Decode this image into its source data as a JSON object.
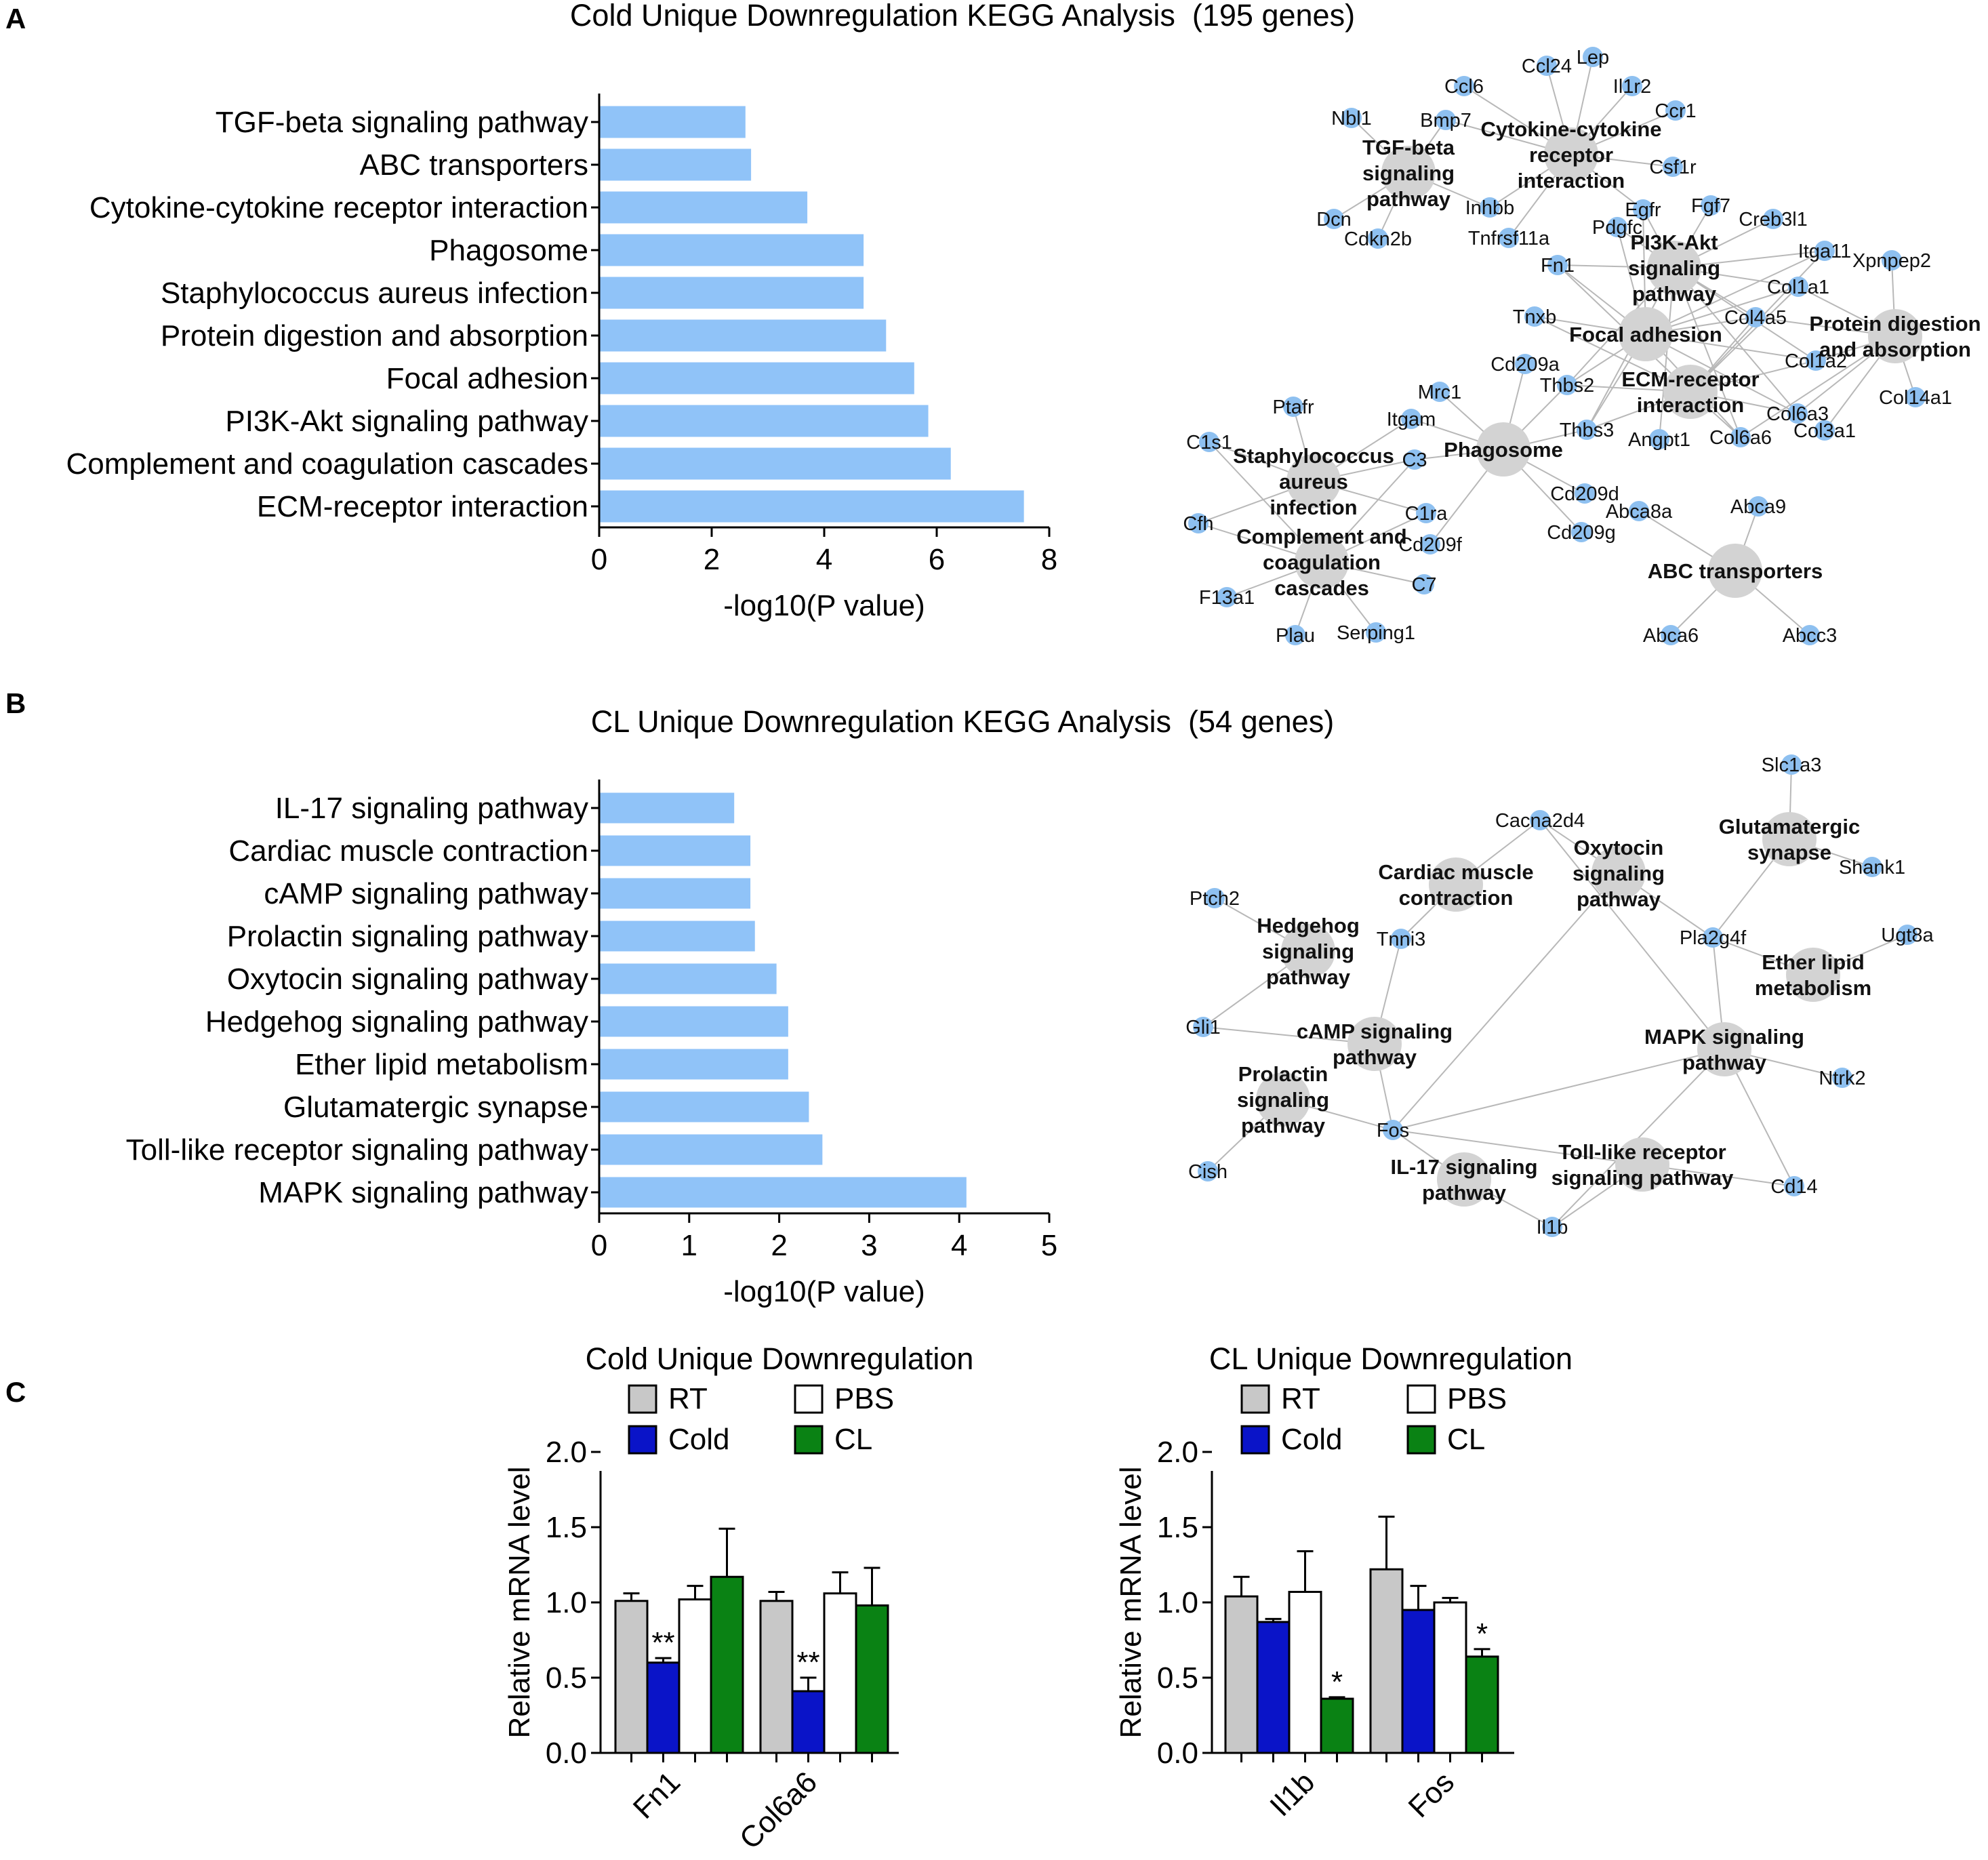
{
  "panel_labels": [
    "A",
    "B",
    "C"
  ],
  "chart_data": [
    {
      "type": "bar",
      "orientation": "horizontal",
      "title": "Cold Unique Downregulation KEGG Analysis  (195 genes)",
      "categories": [
        "TGF-beta signaling pathway",
        "ABC transporters",
        "Cytokine-cytokine receptor interaction",
        "Phagosome",
        "Staphylococcus aureus infection",
        "Protein digestion and absorption",
        "Focal adhesion",
        "PI3K-Akt signaling pathway",
        "Complement and coagulation cascades",
        "ECM-receptor interaction"
      ],
      "values": [
        2.6,
        2.7,
        3.7,
        4.7,
        4.7,
        5.1,
        5.6,
        5.85,
        6.25,
        7.55
      ],
      "xlabel": "-log10(P value)",
      "xlim": [
        0,
        8
      ],
      "xticks": [
        "0",
        "2",
        "4",
        "6",
        "8"
      ],
      "color": "#90c3f8"
    },
    {
      "type": "bar",
      "orientation": "horizontal",
      "title": "CL Unique Downregulation KEGG Analysis  (54 genes)",
      "categories": [
        "IL-17 signaling pathway",
        "Cardiac muscle contraction",
        "cAMP signaling pathway",
        "Prolactin signaling pathway",
        "Oxytocin signaling pathway",
        "Hedgehog signaling pathway",
        "Ether lipid metabolism",
        "Glutamatergic synapse",
        "Toll-like receptor signaling pathway",
        "MAPK signaling pathway"
      ],
      "values": [
        1.5,
        1.68,
        1.68,
        1.73,
        1.97,
        2.1,
        2.1,
        2.33,
        2.48,
        4.08
      ],
      "xlabel": "-log10(P value)",
      "xlim": [
        0,
        5
      ],
      "xticks": [
        "0",
        "1",
        "2",
        "3",
        "4",
        "5"
      ],
      "color": "#90c3f8"
    },
    {
      "type": "bar",
      "title": "Cold Unique Downregulation",
      "categories": [
        "Fn1",
        "Col6a6"
      ],
      "series": [
        {
          "name": "RT",
          "color": "#c8c8c8",
          "values": [
            1.01,
            1.01
          ],
          "errors": [
            0.05,
            0.06
          ],
          "marks": [
            "",
            ""
          ]
        },
        {
          "name": "Cold",
          "color": "#0a14c8",
          "values": [
            0.6,
            0.41
          ],
          "errors": [
            0.03,
            0.09
          ],
          "marks": [
            "**",
            "**"
          ]
        },
        {
          "name": "PBS",
          "color": "#ffffff",
          "values": [
            1.02,
            1.06
          ],
          "errors": [
            0.09,
            0.14
          ],
          "marks": [
            "",
            ""
          ]
        },
        {
          "name": "CL",
          "color": "#0a8214",
          "values": [
            1.17,
            0.98
          ],
          "errors": [
            0.32,
            0.25
          ],
          "marks": [
            "",
            ""
          ]
        }
      ],
      "ylabel": "Relative mRNA level",
      "ylim": [
        0,
        2.0
      ],
      "yticks": [
        "0.0",
        "0.5",
        "1.0",
        "1.5",
        "2.0"
      ]
    },
    {
      "type": "bar",
      "title": "CL Unique Downregulation",
      "categories": [
        "Il1b",
        "Fos"
      ],
      "series": [
        {
          "name": "RT",
          "color": "#c8c8c8",
          "values": [
            1.04,
            1.22
          ],
          "errors": [
            0.13,
            0.35
          ],
          "marks": [
            "",
            ""
          ]
        },
        {
          "name": "Cold",
          "color": "#0a14c8",
          "values": [
            0.87,
            0.95
          ],
          "errors": [
            0.02,
            0.16
          ],
          "marks": [
            "",
            ""
          ]
        },
        {
          "name": "PBS",
          "color": "#ffffff",
          "values": [
            1.07,
            1.0
          ],
          "errors": [
            0.27,
            0.03
          ],
          "marks": [
            "",
            ""
          ]
        },
        {
          "name": "CL",
          "color": "#0a8214",
          "values": [
            0.36,
            0.64
          ],
          "errors": [
            0.01,
            0.05
          ],
          "marks": [
            "*",
            "*"
          ]
        }
      ],
      "ylabel": "Relative mRNA level",
      "ylim": [
        0,
        2.0
      ],
      "yticks": [
        "0.0",
        "0.5",
        "1.0",
        "1.5",
        "2.0"
      ]
    }
  ],
  "networks": [
    {
      "pathways": [
        "TGF-beta signaling pathway",
        "Cytokine-cytokine receptor interaction",
        "PI3K-Akt signaling pathway",
        "Focal adhesion",
        "Protein digestion and absorption",
        "ECM-receptor interaction",
        "Phagosome",
        "Staphylococcus aureus infection",
        "Complement and coagulation cascades",
        "ABC transporters"
      ],
      "genes": [
        "Nbl1",
        "Bmp7",
        "Dcn",
        "Cdkn2b",
        "Inhbb",
        "Ccl6",
        "Ccl24",
        "Lep",
        "Il1r2",
        "Ccr1",
        "Csf1r",
        "Tnfrsf11a",
        "Egfr",
        "Fgf7",
        "Creb3l1",
        "Pdgfc",
        "Itga11",
        "Xpnpep2",
        "Fn1",
        "Col1a1",
        "Tnxb",
        "Col4a5",
        "Col1a2",
        "Thbs2",
        "Col6a3",
        "Col14a1",
        "Thbs3",
        "Angpt1",
        "Col6a6",
        "Col3a1",
        "Cd209a",
        "Mrc1",
        "Ptafr",
        "Itgam",
        "C3",
        "C1s1",
        "Cd209d",
        "C1ra",
        "Cd209g",
        "Cd209f",
        "Cfh",
        "C7",
        "F13a1",
        "Plau",
        "Serping1",
        "Abca8a",
        "Abca9",
        "Abca6",
        "Abcc3"
      ]
    },
    {
      "pathways": [
        "Cardiac muscle contraction",
        "Oxytocin signaling pathway",
        "Glutamatergic synapse",
        "Hedgehog signaling pathway",
        "Ether lipid metabolism",
        "cAMP signaling pathway",
        "MAPK signaling pathway",
        "Prolactin signaling pathway",
        "Toll-like receptor signaling pathway",
        "IL-17 signaling pathway"
      ],
      "genes": [
        "Slc1a3",
        "Cacna2d4",
        "Shank1",
        "Ptch2",
        "Tnni3",
        "Pla2g4f",
        "Ugt8a",
        "Gli1",
        "Ntrk2",
        "Fos",
        "Cish",
        "Cd14",
        "Il1b"
      ]
    }
  ]
}
